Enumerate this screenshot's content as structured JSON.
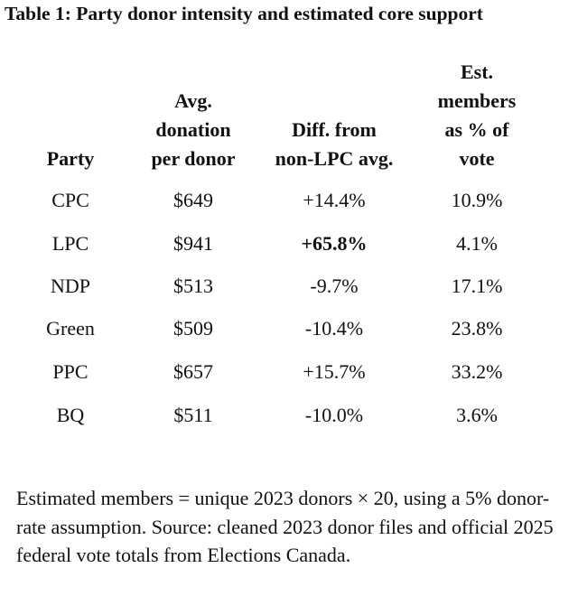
{
  "title": "Table 1: Party donor intensity and estimated core support",
  "table": {
    "headers": [
      "Party",
      "Avg.\ndonation\nper donor",
      "Diff. from\nnon-LPC avg.",
      "Est.\nmembers\nas % of\nvote"
    ],
    "rows": [
      {
        "party": "CPC",
        "avg": "$649",
        "diff": "+14.4%",
        "est": "10.9%"
      },
      {
        "party": "LPC",
        "avg": "$941",
        "diff": "+65.8%",
        "est": "4.1%"
      },
      {
        "party": "NDP",
        "avg": "$513",
        "diff": "-9.7%",
        "est": "17.1%"
      },
      {
        "party": "Green",
        "avg": "$509",
        "diff": "-10.4%",
        "est": "23.8%"
      },
      {
        "party": "PPC",
        "avg": "$657",
        "diff": "+15.7%",
        "est": "33.2%"
      },
      {
        "party": "BQ",
        "avg": "$511",
        "diff": "-10.0%",
        "est": "3.6%"
      }
    ]
  },
  "note": "Estimated members = unique 2023 donors × 20, using a 5% donor-rate assumption. Source: cleaned 2023 donor files and official 2025 federal vote totals from Elections Canada."
}
